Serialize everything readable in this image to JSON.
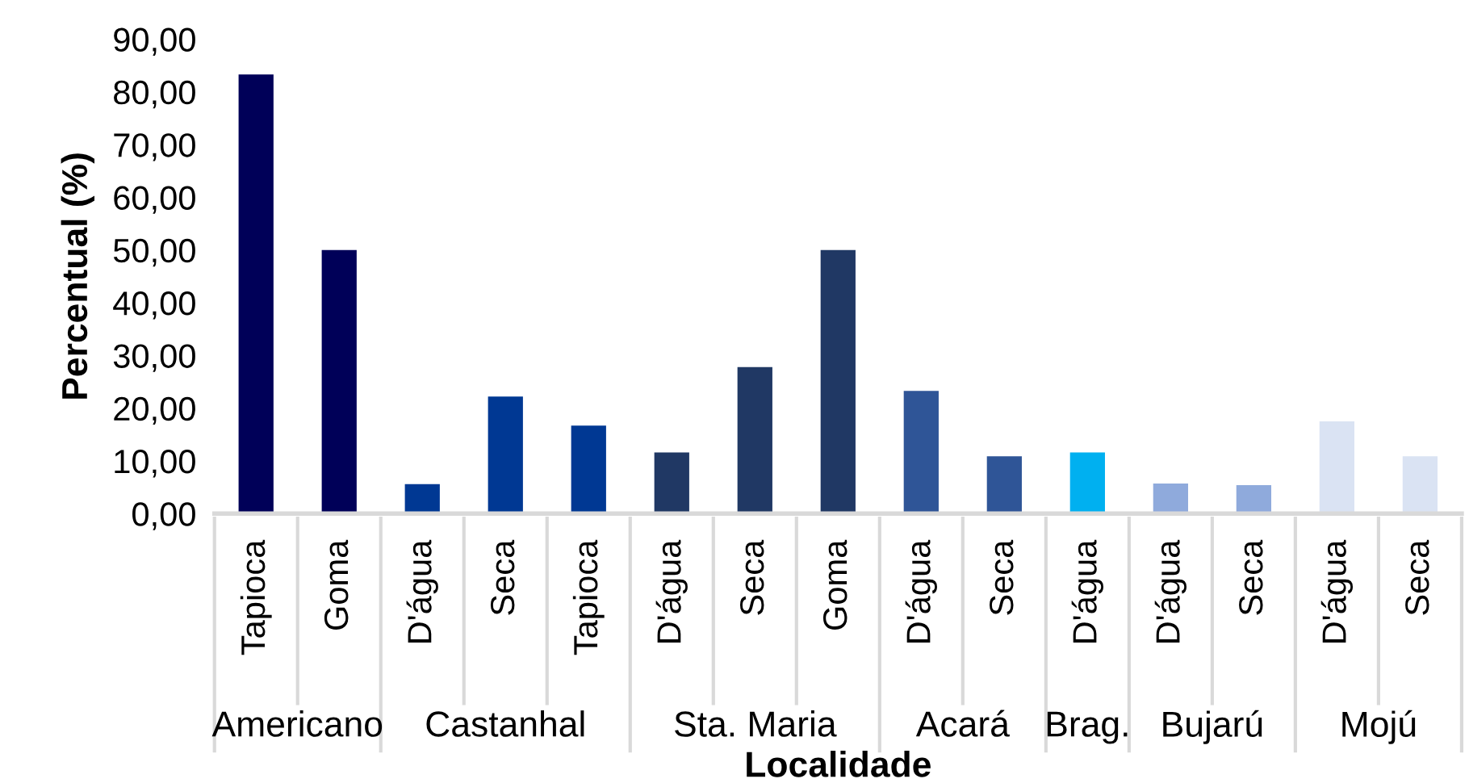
{
  "chart_data": {
    "type": "bar",
    "xlabel": "Localidade",
    "ylabel": "Percentual (%)",
    "categories": [
      "Tapioca",
      "Goma",
      "D'água",
      "Seca",
      "Tapioca",
      "D'água",
      "Seca",
      "Goma",
      "D'água",
      "Seca",
      "D'água",
      "D'água",
      "Seca",
      "D'água",
      "Seca"
    ],
    "values": [
      83.3,
      50,
      5.6,
      22.2,
      16.7,
      11.6,
      27.8,
      50,
      23.3,
      10.9,
      11.6,
      5.7,
      5.4,
      17.5,
      10.9
    ],
    "colors": [
      "#000058",
      "#000058",
      "#003893",
      "#003893",
      "#003893",
      "#203864",
      "#203864",
      "#203864",
      "#2f5597",
      "#2f5597",
      "#00b0f0",
      "#8faadc",
      "#8faadc",
      "#dae3f3",
      "#dae3f3"
    ],
    "annotations": [
      "Americano",
      "Castanhal",
      "Sta. Maria",
      "Acará",
      "Brag.",
      "Bujarú",
      "Mojú"
    ],
    "ylim": [
      0,
      90
    ],
    "yticks": [
      {
        "value": 0,
        "label": "0,00"
      },
      {
        "value": 10,
        "label": "10,00"
      },
      {
        "value": 20,
        "label": "20,00"
      },
      {
        "value": 30,
        "label": "30,00"
      },
      {
        "value": 40,
        "label": "40,00"
      },
      {
        "value": 50,
        "label": "50,00"
      },
      {
        "value": 60,
        "label": "60,00"
      },
      {
        "value": 70,
        "label": "70,00"
      },
      {
        "value": 80,
        "label": "80,00"
      },
      {
        "value": 90,
        "label": "90,00"
      }
    ],
    "grid": false,
    "legend": false
  }
}
